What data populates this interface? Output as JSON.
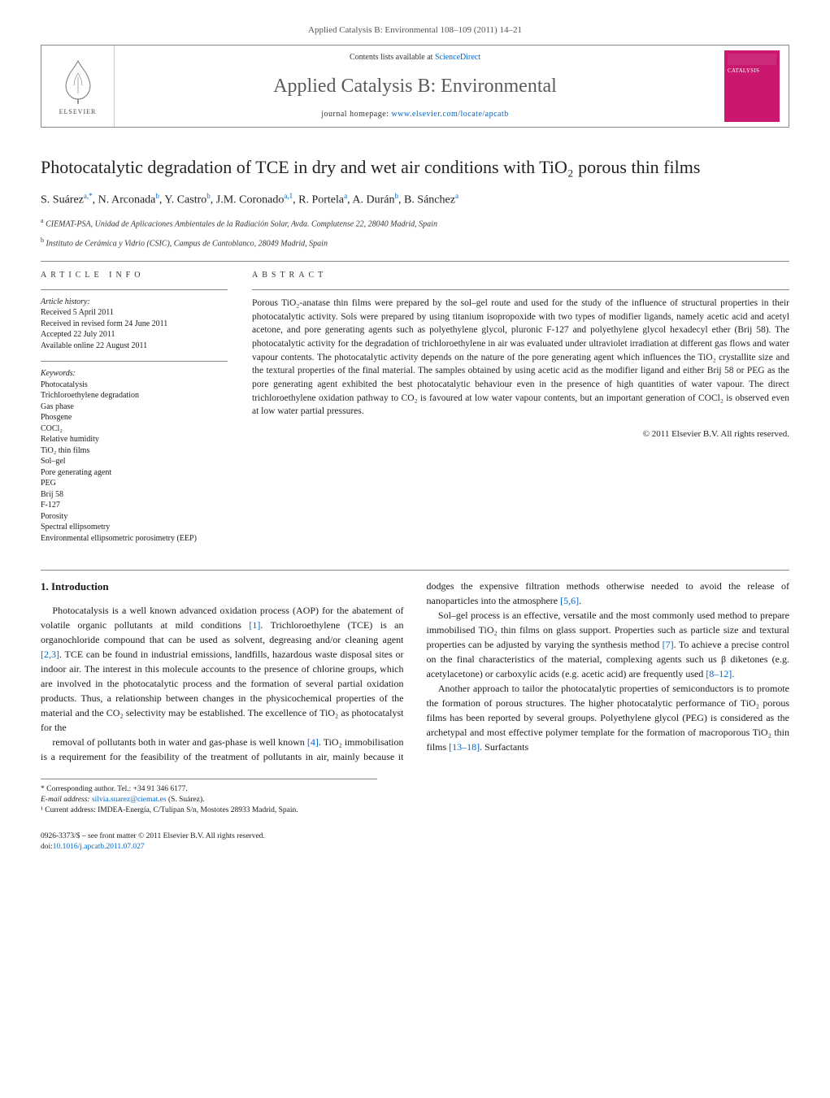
{
  "journal_ref": {
    "text_before": "Applied Catalysis B: Environmental 108–109 (2011) 14–21"
  },
  "header": {
    "contents_prefix": "Contents lists available at ",
    "contents_link": "ScienceDirect",
    "journal_name": "Applied Catalysis B: Environmental",
    "homepage_prefix": "journal homepage: ",
    "homepage_url": "www.elsevier.com/locate/apcatb",
    "publisher_label": "ELSEVIER",
    "cover_label": "CATALYSIS"
  },
  "title": "Photocatalytic degradation of TCE in dry and wet air conditions with TiO₂ porous thin films",
  "authors_html": "S. Suárez<sup>a,*</sup>, N. Arconada<sup>b</sup>, Y. Castro<sup>b</sup>, J.M. Coronado<sup>a,1</sup>, R. Portela<sup>a</sup>, A. Durán<sup>b</sup>, B. Sánchez<sup>a</sup>",
  "affiliations": {
    "a": "CIEMAT-PSA, Unidad de Aplicaciones Ambientales de la Radiación Solar, Avda. Complutense 22, 28040 Madrid, Spain",
    "b": "Instituto de Cerámica y Vidrio (CSIC), Campus de Cantoblanco, 28049 Madrid, Spain"
  },
  "article_info": {
    "label": "ARTICLE INFO",
    "history_label": "Article history:",
    "received": "Received 5 April 2011",
    "revised": "Received in revised form 24 June 2011",
    "accepted": "Accepted 22 July 2011",
    "online": "Available online 22 August 2011",
    "keywords_label": "Keywords:",
    "keywords": [
      "Photocatalysis",
      "Trichloroethylene degradation",
      "Gas phase",
      "Phosgene",
      "COCl₂",
      "Relative humidity",
      "TiO₂ thin films",
      "Sol–gel",
      "Pore generating agent",
      "PEG",
      "Brij 58",
      "F-127",
      "Porosity",
      "Spectral ellipsometry",
      "Environmental ellipsometric porosimetry (EEP)"
    ]
  },
  "abstract": {
    "label": "ABSTRACT",
    "text": "Porous TiO₂-anatase thin films were prepared by the sol–gel route and used for the study of the influence of structural properties in their photocatalytic activity. Sols were prepared by using titanium isopropoxide with two types of modifier ligands, namely acetic acid and acetyl acetone, and pore generating agents such as polyethylene glycol, pluronic F-127 and polyethylene glycol hexadecyl ether (Brij 58). The photocatalytic activity for the degradation of trichloroethylene in air was evaluated under ultraviolet irradiation at different gas flows and water vapour contents. The photocatalytic activity depends on the nature of the pore generating agent which influences the TiO₂ crystallite size and the textural properties of the final material. The samples obtained by using acetic acid as the modifier ligand and either Brij 58 or PEG as the pore generating agent exhibited the best photocatalytic behaviour even in the presence of high quantities of water vapour. The direct trichloroethylene oxidation pathway to CO₂ is favoured at low water vapour contents, but an important generation of COCl₂ is observed even at low water partial pressures.",
    "copyright": "© 2011 Elsevier B.V. All rights reserved."
  },
  "intro": {
    "heading": "1. Introduction",
    "p1": "Photocatalysis is a well known advanced oxidation process (AOP) for the abatement of volatile organic pollutants at mild conditions [1]. Trichloroethylene (TCE) is an organochloride compound that can be used as solvent, degreasing and/or cleaning agent [2,3]. TCE can be found in industrial emissions, landfills, hazardous waste disposal sites or indoor air. The interest in this molecule accounts to the presence of chlorine groups, which are involved in the photocatalytic process and the formation of several partial oxidation products. Thus, a relationship between changes in the physicochemical properties of the material and the CO₂ selectivity may be established. The excellence of TiO₂ as photocatalyst for the",
    "p2": "removal of pollutants both in water and gas-phase is well known [4]. TiO₂ immobilisation is a requirement for the feasibility of the treatment of pollutants in air, mainly because it dodges the expensive filtration methods otherwise needed to avoid the release of nanoparticles into the atmosphere [5,6].",
    "p3": "Sol–gel process is an effective, versatile and the most commonly used method to prepare immobilised TiO₂ thin films on glass support. Properties such as particle size and textural properties can be adjusted by varying the synthesis method [7]. To achieve a precise control on the final characteristics of the material, complexing agents such us β diketones (e.g. acetylacetone) or carboxylic acids (e.g. acetic acid) are frequently used [8–12].",
    "p4": "Another approach to tailor the photocatalytic properties of semiconductors is to promote the formation of porous structures. The higher photocatalytic performance of TiO₂ porous films has been reported by several groups. Polyethylene glycol (PEG) is considered as the archetypal and most effective polymer template for the formation of macroporous TiO₂ thin films [13–18]. Surfactants"
  },
  "footnotes": {
    "corr_label": "* Corresponding author. Tel.: +34 91 346 6177.",
    "email_label": "E-mail address: ",
    "email": "silvia.suarez@ciemat.es",
    "email_suffix": " (S. Suárez).",
    "note1": "¹ Current address: IMDEA-Energía, C/Tulipan S/n, Mostotes 28933 Madrid, Spain."
  },
  "bottom": {
    "line1": "0926-3373/$ – see front matter © 2011 Elsevier B.V. All rights reserved.",
    "doi_prefix": "doi:",
    "doi": "10.1016/j.apcatb.2011.07.027"
  },
  "colors": {
    "link": "#0066cc",
    "cover": "#c9186e",
    "rule": "#888888"
  }
}
